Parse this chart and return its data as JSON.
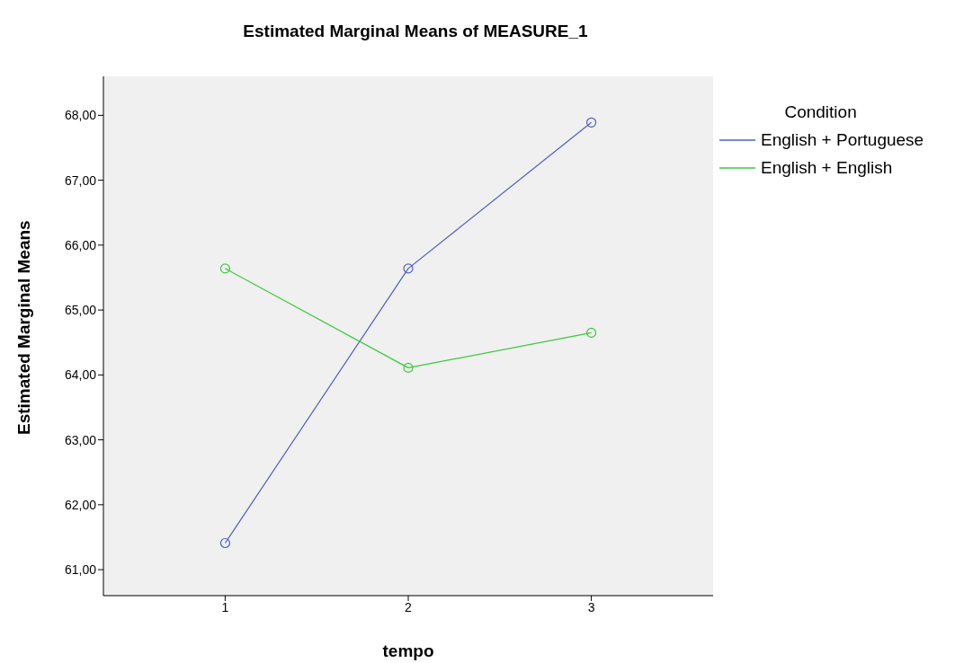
{
  "chart_data": {
    "type": "line",
    "title": "Estimated Marginal Means of MEASURE_1",
    "xlabel": "tempo",
    "ylabel": "Estimated Marginal Means",
    "legend_title": "Condition",
    "categories": [
      "1",
      "2",
      "3"
    ],
    "series": [
      {
        "name": "English + Portuguese",
        "color": "#4f5fc8",
        "values": [
          61.41,
          65.64,
          67.89
        ]
      },
      {
        "name": "English + English",
        "color": "#3cc83c",
        "values": [
          65.64,
          64.11,
          64.65
        ]
      }
    ],
    "ylim": [
      60.6,
      68.6
    ],
    "yticks": [
      {
        "value": 61,
        "label": "61,00"
      },
      {
        "value": 62,
        "label": "62,00"
      },
      {
        "value": 63,
        "label": "63,00"
      },
      {
        "value": 64,
        "label": "64,00"
      },
      {
        "value": 65,
        "label": "65,00"
      },
      {
        "value": 66,
        "label": "66,00"
      },
      {
        "value": 67,
        "label": "67,00"
      },
      {
        "value": 68,
        "label": "68,00"
      }
    ],
    "marker": "circle",
    "grid": false,
    "legend": "top right"
  }
}
